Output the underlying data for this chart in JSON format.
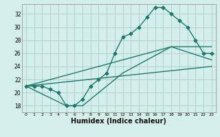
{
  "xlabel": "Humidex (Indice chaleur)",
  "xlim": [
    -0.5,
    23.5
  ],
  "ylim": [
    17.0,
    33.5
  ],
  "yticks": [
    18,
    20,
    22,
    24,
    26,
    28,
    30,
    32
  ],
  "xticks": [
    0,
    1,
    2,
    3,
    4,
    5,
    6,
    7,
    8,
    9,
    10,
    11,
    12,
    13,
    14,
    15,
    16,
    17,
    18,
    19,
    20,
    21,
    22,
    23
  ],
  "bg_color": "#d4eeeb",
  "grid_color": "#a8d0cb",
  "line_color": "#1a7a6a",
  "line1_x": [
    0,
    1,
    2,
    3,
    4,
    5,
    6,
    7,
    8,
    9,
    10,
    11,
    12,
    13,
    14,
    15,
    16,
    17,
    18,
    19,
    20,
    21,
    22,
    23
  ],
  "line1_y": [
    21,
    21,
    21,
    20.5,
    20,
    18,
    18,
    19,
    21,
    22,
    23,
    26,
    28.5,
    29,
    30,
    31.5,
    33,
    33,
    32,
    31,
    30,
    28,
    26,
    26
  ],
  "line2_x": [
    0,
    18,
    23
  ],
  "line2_y": [
    21,
    27,
    27
  ],
  "line3_x": [
    0,
    23
  ],
  "line3_y": [
    21,
    24
  ],
  "line4_x": [
    0,
    5,
    7,
    12,
    18,
    23
  ],
  "line4_y": [
    21,
    18,
    18,
    23,
    27,
    25
  ],
  "marker": "D",
  "marker_size": 2.5,
  "linewidth": 1.0
}
